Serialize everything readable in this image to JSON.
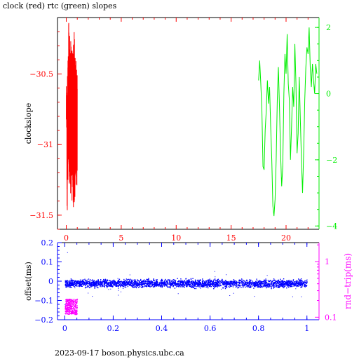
{
  "title": "clock (red) rtc (green) slopes",
  "footer": "2023-09-17 boson.physics.ubc.ca",
  "colors": {
    "red": "#ff0000",
    "green": "#00ee00",
    "blue": "#0000ff",
    "magenta": "#ff00ff",
    "axis": "#000000"
  },
  "chart_data": [
    {
      "type": "line",
      "name": "clock-rtc-slopes",
      "ylabel": "clockslope",
      "xlim": [
        -0.8,
        23
      ],
      "ylim": [
        -31.6,
        -30.1
      ],
      "xticks": [
        0,
        5,
        10,
        15,
        20
      ],
      "yticks": [
        -31.5,
        -31,
        -30.5
      ],
      "ytick_labels": [
        "−31.5",
        "−31",
        "−30.5"
      ],
      "y2lim": [
        -4.1,
        2.3
      ],
      "y2ticks": [
        -4,
        -2,
        0,
        2
      ],
      "y2tick_labels": [
        "−4",
        "−2",
        "0",
        "2"
      ],
      "series": [
        {
          "color": "red",
          "x_range": [
            0,
            1
          ],
          "y_envelope": [
            [
              0.0,
              -30.9,
              -30.55
            ],
            [
              0.05,
              -31.5,
              -30.6
            ],
            [
              0.1,
              -31.3,
              -30.4
            ],
            [
              0.15,
              -31.25,
              -30.3
            ],
            [
              0.2,
              -31.3,
              -30.1
            ],
            [
              0.25,
              -31.35,
              -30.5
            ],
            [
              0.3,
              -31.2,
              -30.15
            ],
            [
              0.35,
              -31.35,
              -30.35
            ],
            [
              0.4,
              -31.3,
              -30.1
            ],
            [
              0.45,
              -31.25,
              -30.25
            ],
            [
              0.5,
              -31.4,
              -30.2
            ],
            [
              0.55,
              -31.3,
              -30.35
            ],
            [
              0.6,
              -31.55,
              -30.3
            ],
            [
              0.65,
              -31.4,
              -30.15
            ],
            [
              0.7,
              -31.45,
              -30.2
            ],
            [
              0.75,
              -31.4,
              -30.5
            ],
            [
              0.8,
              -31.3,
              -30.3
            ],
            [
              0.85,
              -31.2,
              -30.4
            ],
            [
              0.9,
              -31.45,
              -30.35
            ],
            [
              0.95,
              -31.3,
              -30.5
            ],
            [
              1.0,
              -31.25,
              -30.4
            ]
          ]
        },
        {
          "color": "green",
          "axis": "right",
          "x": [
            17.5,
            17.6,
            17.7,
            17.8,
            17.9,
            18.0,
            18.1,
            18.2,
            18.3,
            18.4,
            18.5,
            18.6,
            18.7,
            18.8,
            18.9,
            19.0,
            19.1,
            19.2,
            19.3,
            19.4,
            19.5,
            19.6,
            19.7,
            19.8,
            19.9,
            20.0,
            20.1,
            20.2,
            20.3,
            20.4,
            20.5,
            20.6,
            20.7,
            20.8,
            20.9,
            21.0,
            21.1,
            21.2,
            21.3,
            21.4,
            21.5,
            21.6,
            21.7,
            21.8,
            21.9,
            22.0,
            22.1,
            22.2,
            22.3,
            22.4,
            22.5,
            22.6,
            22.7,
            22.8
          ],
          "y": [
            0.4,
            1.0,
            0.3,
            -0.5,
            -2.2,
            -2.3,
            -1.1,
            -0.5,
            0.4,
            -0.3,
            0.2,
            -1.0,
            -2.0,
            -3.4,
            -3.7,
            -3.2,
            -2.0,
            -0.2,
            0.8,
            -0.4,
            -1.8,
            -2.8,
            -2.2,
            0.0,
            1.2,
            0.6,
            1.8,
            0.3,
            -0.2,
            -2.0,
            -1.0,
            0.2,
            -0.4,
            1.5,
            0.3,
            -1.8,
            -1.2,
            0.5,
            -0.8,
            -2.0,
            -3.0,
            -1.8,
            -0.2,
            0.8,
            1.4,
            1.2,
            2.0,
            0.8,
            0.2,
            0.9,
            0.4,
            0.0,
            0.9,
            0.6
          ]
        }
      ]
    },
    {
      "type": "scatter",
      "name": "offset-and-roundtrip",
      "ylabel": "offset(ms)",
      "y2label": "rnd−trip(ms)",
      "xlim": [
        -0.03,
        1.05
      ],
      "ylim": [
        -0.2,
        0.2
      ],
      "xticks": [
        0,
        0.2,
        0.4,
        0.6,
        0.8,
        1
      ],
      "xtick_labels": [
        "0",
        "0.2",
        "0.4",
        "0.6",
        "0.8",
        "1"
      ],
      "yticks": [
        -0.2,
        -0.1,
        0,
        0.1,
        0.2
      ],
      "ytick_labels": [
        "−0.2",
        "−0.1",
        "0",
        "0.1",
        "0.2"
      ],
      "y2_scale": "log",
      "y2lim": [
        0.09,
        2.2
      ],
      "y2ticks": [
        0.1,
        1
      ],
      "y2tick_labels": [
        "0.1",
        "1"
      ],
      "series": [
        {
          "color": "blue",
          "x_range": [
            0,
            1
          ],
          "y_center": -0.01,
          "y_spread": 0.03,
          "y_extremes": [
            -0.12,
            0.15
          ]
        },
        {
          "color": "magenta",
          "x_range": [
            0,
            0.05
          ],
          "y_range": [
            -0.17,
            -0.09
          ]
        }
      ]
    }
  ]
}
